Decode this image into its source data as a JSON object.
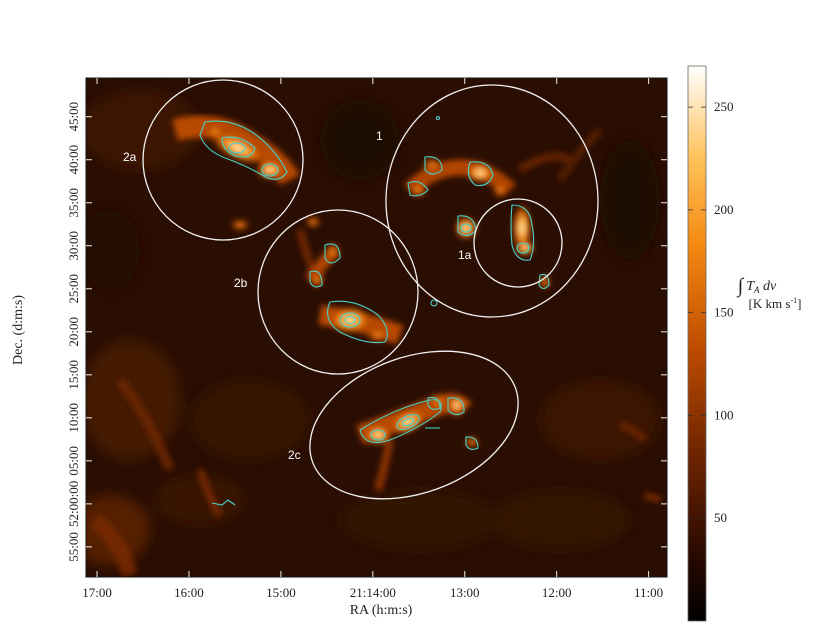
{
  "chart_data": {
    "type": "heatmap",
    "title": "",
    "xlabel": "RA (h:m:s)",
    "ylabel": "Dec. (d:m:s)",
    "x_ticks": [
      "17:00",
      "16:00",
      "15:00",
      "21:14:00",
      "13:00",
      "12:00",
      "11:00"
    ],
    "y_ticks": [
      "45:00",
      "40:00",
      "35:00",
      "30:00",
      "25:00",
      "20:00",
      "15:00",
      "10:00",
      "05:00",
      "52:00:00",
      "55:00"
    ],
    "x_range_minutes": [
      -3.2,
      3.12
    ],
    "y_range_arcmin": [
      -8.5,
      49.5
    ],
    "colorbar": {
      "title": "∫ T",
      "title_subscript": "A",
      "title_tail": " dv",
      "unit": "[K km s",
      "unit_sup": "-1",
      "unit_close": "]",
      "ticks": [
        50,
        100,
        150,
        200,
        250
      ],
      "range": [
        0,
        270
      ],
      "colormap": "black-orange-white"
    },
    "regions": [
      {
        "label": "1",
        "center_ra_min": 1.15,
        "center_dec_arcmin": 33.5,
        "a": 1.15,
        "b": 11.5,
        "angle_deg": 0
      },
      {
        "label": "1a",
        "center_ra_min": 0.65,
        "center_dec_arcmin": 31.5,
        "a": 0.45,
        "b": 5.5,
        "angle_deg": 0
      },
      {
        "label": "2a",
        "center_ra_min": -1.85,
        "center_dec_arcmin": 40.0,
        "a": 0.85,
        "b": 8.0,
        "angle_deg": 0
      },
      {
        "label": "2b",
        "center_ra_min": -0.75,
        "center_dec_arcmin": 26.0,
        "a": 0.9,
        "b": 7.8,
        "angle_deg": 0
      },
      {
        "label": "2c",
        "center_ra_min": 0.15,
        "center_dec_arcmin": 12.5,
        "a": 1.1,
        "b": 7.0,
        "angle_deg": -20
      }
    ]
  },
  "labels": {
    "region_1": "1",
    "region_1a": "1a",
    "region_2a": "2a",
    "region_2b": "2b",
    "region_2c": "2c"
  },
  "colors": {
    "contour": "#48d1c8",
    "ellipse": "#f2f2f2",
    "background_dark": "#1a0800",
    "emission_low": "#5a1e00",
    "emission_high": "#ff8a10"
  }
}
